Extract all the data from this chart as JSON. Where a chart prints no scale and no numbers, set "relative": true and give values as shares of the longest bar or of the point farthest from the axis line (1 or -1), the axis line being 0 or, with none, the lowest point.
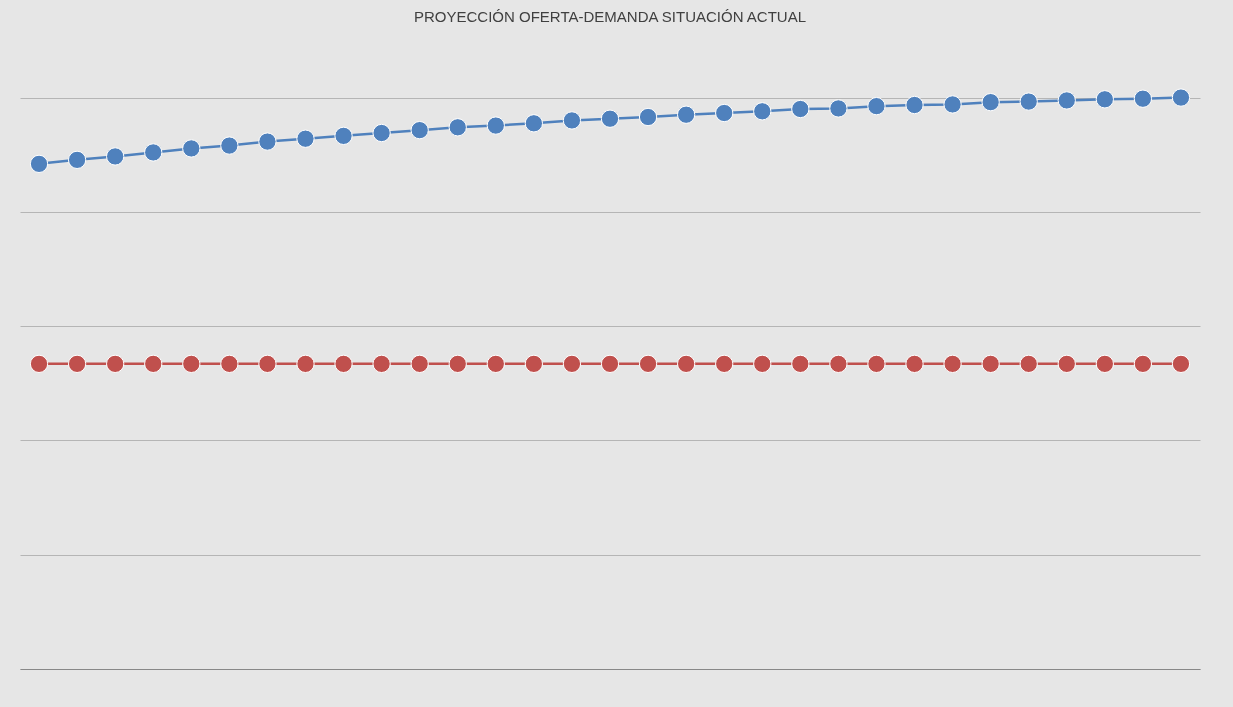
{
  "chart_data": {
    "type": "line",
    "title": "PROYECCIÓN OFERTA-DEMANDA SITUACIÓN ACTUAL",
    "relative": true,
    "grid": "y",
    "marker": "circle",
    "line_style": "solid",
    "categories": [
      null,
      null,
      null,
      null,
      null,
      null,
      null,
      null,
      null,
      null,
      null,
      null,
      null,
      null,
      null,
      null,
      null,
      null,
      null,
      null,
      null,
      null,
      null,
      null,
      null,
      null,
      null,
      null,
      null,
      null,
      null
    ],
    "series": [
      {
        "color": "#4f81bd",
        "values": [
          0.884,
          0.891,
          0.897,
          0.904,
          0.911,
          0.916,
          0.923,
          0.928,
          0.933,
          0.938,
          0.943,
          0.948,
          0.951,
          0.955,
          0.96,
          0.963,
          0.966,
          0.97,
          0.973,
          0.976,
          0.98,
          0.981,
          0.985,
          0.987,
          0.988,
          0.992,
          0.993,
          0.995,
          0.997,
          0.998,
          1
        ]
      },
      {
        "color": "#c0504d",
        "values": [
          0.534,
          0.534,
          0.534,
          0.534,
          0.534,
          0.534,
          0.534,
          0.534,
          0.534,
          0.534,
          0.534,
          0.534,
          0.534,
          0.534,
          0.534,
          0.534,
          0.534,
          0.534,
          0.534,
          0.534,
          0.534,
          0.534,
          0.534,
          0.534,
          0.534,
          0.534,
          0.534,
          0.534,
          0.534,
          0.534,
          0.534
        ]
      }
    ]
  }
}
